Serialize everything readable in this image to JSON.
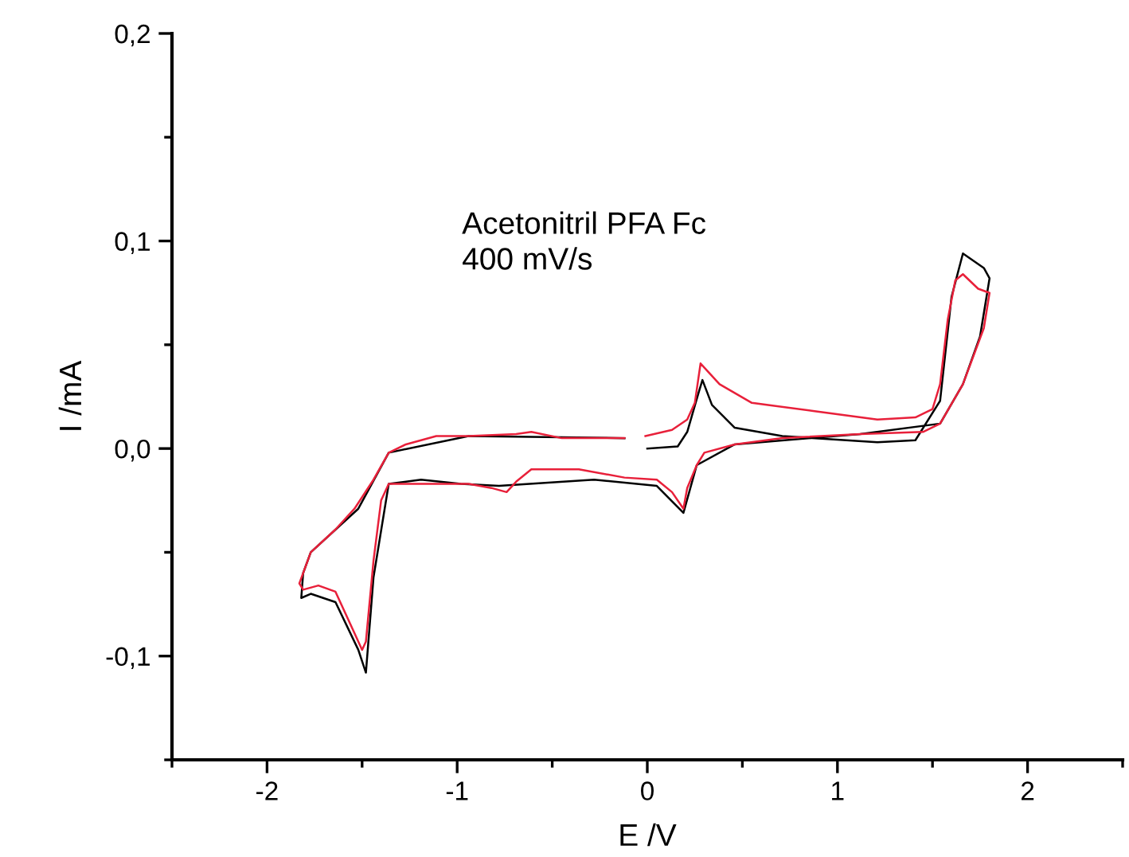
{
  "chart_data": {
    "type": "line",
    "xlabel": "E /V",
    "ylabel": "I /mA",
    "annotations": [
      "Acetonitril PFA Fc\n400 mV/s"
    ],
    "xlim": [
      -2.5,
      2.5
    ],
    "ylim": [
      -0.15,
      0.2
    ],
    "xticks": [
      {
        "value": -2.5,
        "label": null
      },
      -2,
      {
        "value": -1.5,
        "label": null
      },
      -1,
      {
        "value": -0.5,
        "label": null
      },
      0,
      {
        "value": 0.5,
        "label": null
      },
      1,
      {
        "value": 1.5,
        "label": null
      },
      2,
      {
        "value": 2.5,
        "label": null
      }
    ],
    "yticks": [
      {
        "value": -0.15,
        "label": null
      },
      {
        "value": -0.1,
        "label": "-0,1"
      },
      {
        "value": -0.05,
        "label": null
      },
      {
        "value": 0,
        "label": "0,0"
      },
      {
        "value": 0.05,
        "label": null
      },
      {
        "value": 0.1,
        "label": "0,1"
      },
      {
        "value": 0.15,
        "label": null
      },
      {
        "value": 0.2,
        "label": "0,2"
      }
    ],
    "grid": false,
    "legend": false,
    "series": [
      {
        "color": "#000000",
        "x": [
          0.0,
          0.16,
          0.21,
          0.27,
          0.29,
          0.34,
          0.46,
          0.71,
          1.21,
          1.41,
          1.54,
          1.6,
          1.66,
          1.77,
          1.8,
          1.75,
          1.66,
          1.54,
          1.12,
          0.46,
          0.26,
          0.19,
          0.05,
          -0.28,
          -0.78,
          -0.98,
          -1.19,
          -1.36,
          -1.44,
          -1.48,
          -1.52,
          -1.64,
          -1.77,
          -1.82,
          -1.81,
          -1.77,
          -1.52,
          -1.36,
          -0.94,
          -0.12
        ],
        "values": [
          0.0,
          0.001,
          0.008,
          0.027,
          0.033,
          0.021,
          0.01,
          0.006,
          0.003,
          0.004,
          0.023,
          0.073,
          0.094,
          0.087,
          0.082,
          0.054,
          0.031,
          0.012,
          0.007,
          0.002,
          -0.008,
          -0.031,
          -0.018,
          -0.015,
          -0.018,
          -0.017,
          -0.015,
          -0.017,
          -0.062,
          -0.108,
          -0.097,
          -0.074,
          -0.07,
          -0.072,
          -0.06,
          -0.05,
          -0.029,
          -0.002,
          0.006,
          0.005
        ]
      },
      {
        "color": "#e8203a",
        "x": [
          -0.01,
          0.13,
          0.21,
          0.25,
          0.28,
          0.38,
          0.55,
          0.88,
          1.21,
          1.41,
          1.5,
          1.54,
          1.58,
          1.62,
          1.66,
          1.74,
          1.8,
          1.77,
          1.66,
          1.54,
          1.45,
          1.12,
          0.71,
          0.46,
          0.3,
          0.26,
          0.21,
          0.19,
          0.13,
          0.05,
          -0.12,
          -0.36,
          -0.61,
          -0.69,
          -0.74,
          -0.82,
          -0.94,
          -1.19,
          -1.36,
          -1.4,
          -1.44,
          -1.48,
          -1.5,
          -1.54,
          -1.64,
          -1.73,
          -1.81,
          -1.83,
          -1.81,
          -1.77,
          -1.64,
          -1.54,
          -1.44,
          -1.36,
          -1.27,
          -1.11,
          -0.94,
          -0.69,
          -0.61,
          -0.45,
          -0.12
        ],
        "values": [
          0.006,
          0.009,
          0.014,
          0.022,
          0.041,
          0.031,
          0.022,
          0.018,
          0.014,
          0.015,
          0.019,
          0.031,
          0.062,
          0.081,
          0.084,
          0.077,
          0.075,
          0.058,
          0.031,
          0.012,
          0.008,
          0.007,
          0.005,
          0.002,
          -0.002,
          -0.008,
          -0.019,
          -0.029,
          -0.021,
          -0.015,
          -0.014,
          -0.01,
          -0.01,
          -0.016,
          -0.021,
          -0.019,
          -0.017,
          -0.017,
          -0.017,
          -0.025,
          -0.054,
          -0.093,
          -0.097,
          -0.089,
          -0.069,
          -0.066,
          -0.068,
          -0.065,
          -0.06,
          -0.05,
          -0.039,
          -0.029,
          -0.015,
          -0.002,
          0.002,
          0.006,
          0.006,
          0.007,
          0.008,
          0.005,
          0.005
        ]
      }
    ]
  }
}
